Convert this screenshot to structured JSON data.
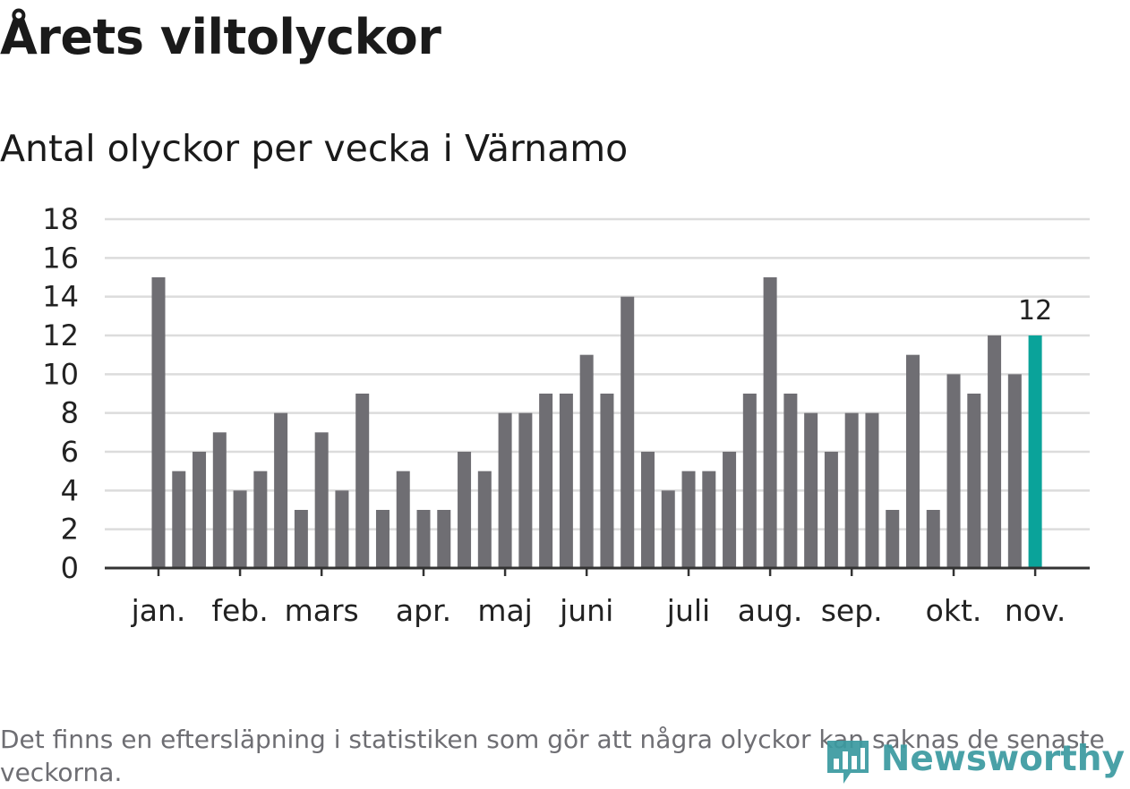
{
  "title": "Årets viltolyckor",
  "subtitle": "Antal olyckor per vecka i Värnamo",
  "footnote": "Det finns en eftersläpning i statistiken som gör att några olyckor kan saknas de senaste veckorna.",
  "brand": "Newsworthy",
  "colors": {
    "bar": "#6f6e73",
    "highlight": "#0aa39a",
    "grid": "#dcdcdc",
    "axis": "#333333"
  },
  "chart_data": {
    "type": "bar",
    "title": "Årets viltolyckor",
    "subtitle": "Antal olyckor per vecka i Värnamo",
    "xlabel": "",
    "ylabel": "",
    "ylim": [
      0,
      18
    ],
    "yticks": [
      0,
      2,
      4,
      6,
      8,
      10,
      12,
      14,
      16,
      18
    ],
    "grid": true,
    "weeks": [
      1,
      2,
      3,
      4,
      5,
      6,
      7,
      8,
      9,
      10,
      11,
      12,
      13,
      14,
      15,
      16,
      17,
      18,
      19,
      20,
      21,
      22,
      23,
      24,
      25,
      26,
      27,
      28,
      29,
      30,
      31,
      32,
      33,
      34,
      35,
      36,
      37,
      38,
      39,
      40,
      41,
      42,
      43,
      44
    ],
    "values": [
      15,
      5,
      6,
      7,
      4,
      5,
      8,
      3,
      7,
      4,
      9,
      3,
      5,
      3,
      3,
      6,
      5,
      8,
      8,
      9,
      9,
      11,
      9,
      14,
      6,
      4,
      5,
      5,
      6,
      9,
      15,
      9,
      8,
      6,
      8,
      8,
      3,
      11,
      3,
      10,
      9,
      12,
      10,
      12
    ],
    "highlight_index": 43,
    "highlight_label": "12",
    "month_labels": [
      {
        "label": "jan.",
        "week": 1
      },
      {
        "label": "feb.",
        "week": 5
      },
      {
        "label": "mars",
        "week": 9
      },
      {
        "label": "apr.",
        "week": 14
      },
      {
        "label": "maj",
        "week": 18
      },
      {
        "label": "juni",
        "week": 22
      },
      {
        "label": "juli",
        "week": 27
      },
      {
        "label": "aug.",
        "week": 31
      },
      {
        "label": "sep.",
        "week": 35
      },
      {
        "label": "okt.",
        "week": 40
      },
      {
        "label": "nov.",
        "week": 44
      }
    ]
  }
}
